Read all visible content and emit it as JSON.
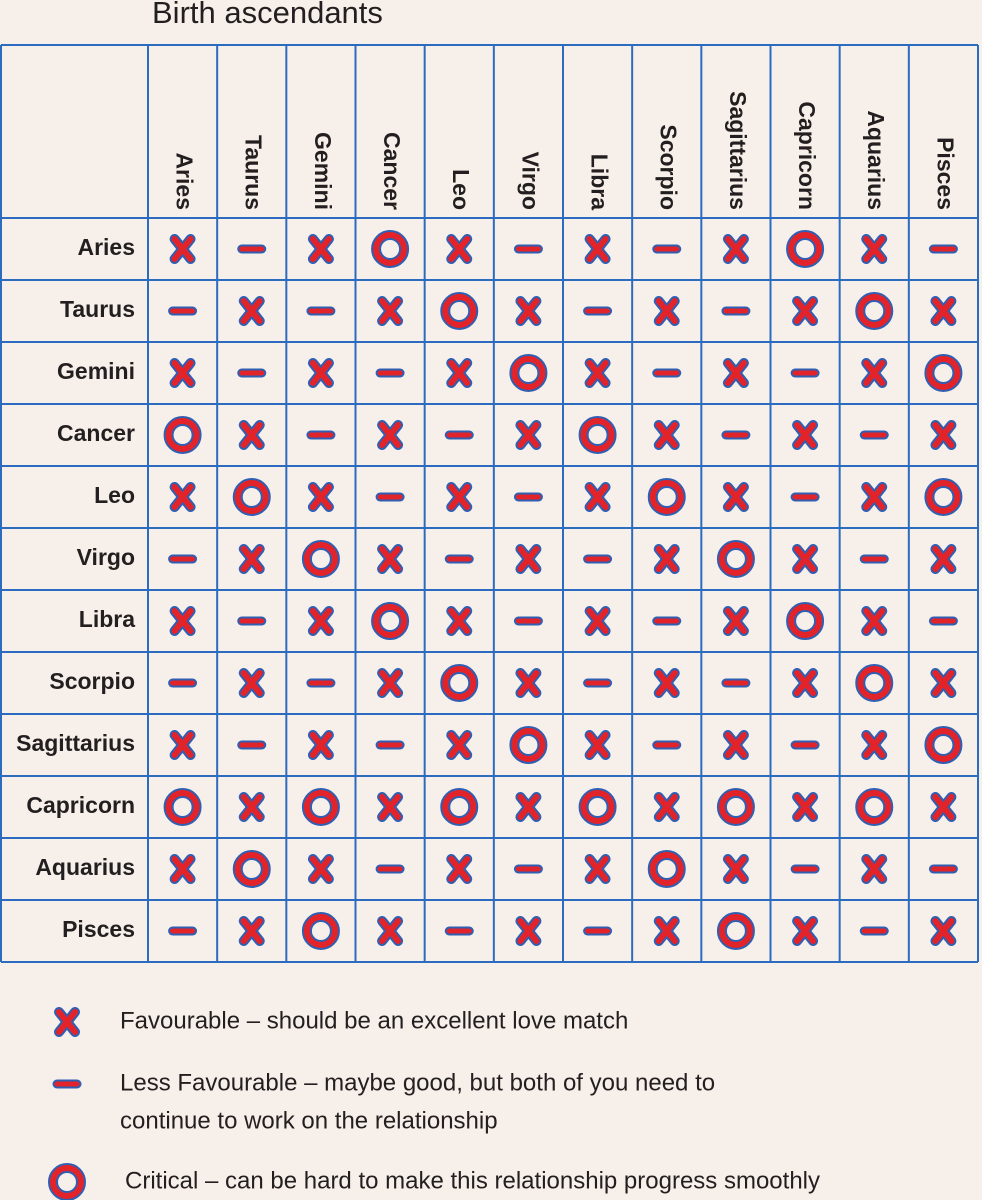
{
  "title": "Birth ascendants",
  "columns": [
    "Aries",
    "Taurus",
    "Gemini",
    "Cancer",
    "Leo",
    "Virgo",
    "Libra",
    "Scorpio",
    "Sagittarius",
    "Capricorn",
    "Aquarius",
    "Pisces"
  ],
  "rows": [
    {
      "label": "Aries",
      "cells": [
        "x",
        "-",
        "x",
        "o",
        "x",
        "-",
        "x",
        "-",
        "x",
        "o",
        "x",
        "-"
      ]
    },
    {
      "label": "Taurus",
      "cells": [
        "-",
        "x",
        "-",
        "x",
        "o",
        "x",
        "-",
        "x",
        "-",
        "x",
        "o",
        "x"
      ]
    },
    {
      "label": "Gemini",
      "cells": [
        "x",
        "-",
        "x",
        "-",
        "x",
        "o",
        "x",
        "-",
        "x",
        "-",
        "x",
        "o"
      ]
    },
    {
      "label": "Cancer",
      "cells": [
        "o",
        "x",
        "-",
        "x",
        "-",
        "x",
        "o",
        "x",
        "-",
        "x",
        "-",
        "x"
      ]
    },
    {
      "label": "Leo",
      "cells": [
        "x",
        "o",
        "x",
        "-",
        "x",
        "-",
        "x",
        "o",
        "x",
        "-",
        "x",
        "o"
      ]
    },
    {
      "label": "Virgo",
      "cells": [
        "-",
        "x",
        "o",
        "x",
        "-",
        "x",
        "-",
        "x",
        "o",
        "x",
        "-",
        "x"
      ]
    },
    {
      "label": "Libra",
      "cells": [
        "x",
        "-",
        "x",
        "o",
        "x",
        "-",
        "x",
        "-",
        "x",
        "o",
        "x",
        "-"
      ]
    },
    {
      "label": "Scorpio",
      "cells": [
        "-",
        "x",
        "-",
        "x",
        "o",
        "x",
        "-",
        "x",
        "-",
        "x",
        "o",
        "x"
      ]
    },
    {
      "label": "Sagittarius",
      "cells": [
        "x",
        "-",
        "x",
        "-",
        "x",
        "o",
        "x",
        "-",
        "x",
        "-",
        "x",
        "o"
      ]
    },
    {
      "label": "Capricorn",
      "cells": [
        "o",
        "x",
        "o",
        "x",
        "o",
        "x",
        "o",
        "x",
        "o",
        "x",
        "o",
        "x"
      ]
    },
    {
      "label": "Aquarius",
      "cells": [
        "x",
        "o",
        "x",
        "-",
        "x",
        "-",
        "x",
        "o",
        "x",
        "-",
        "x",
        "-"
      ]
    },
    {
      "label": "Pisces",
      "cells": [
        "-",
        "x",
        "o",
        "x",
        "-",
        "x",
        "-",
        "x",
        "o",
        "x",
        "-",
        "x"
      ]
    }
  ],
  "legend": [
    {
      "symbol": "x",
      "lines": [
        "Favourable – should be an excellent love match"
      ]
    },
    {
      "symbol": "-",
      "lines": [
        "Less Favourable – maybe good, but both of you need to",
        "continue to work on the relationship"
      ]
    },
    {
      "symbol": "o",
      "lines": [
        "Critical – can be hard to make this relationship progress smoothly"
      ]
    }
  ]
}
